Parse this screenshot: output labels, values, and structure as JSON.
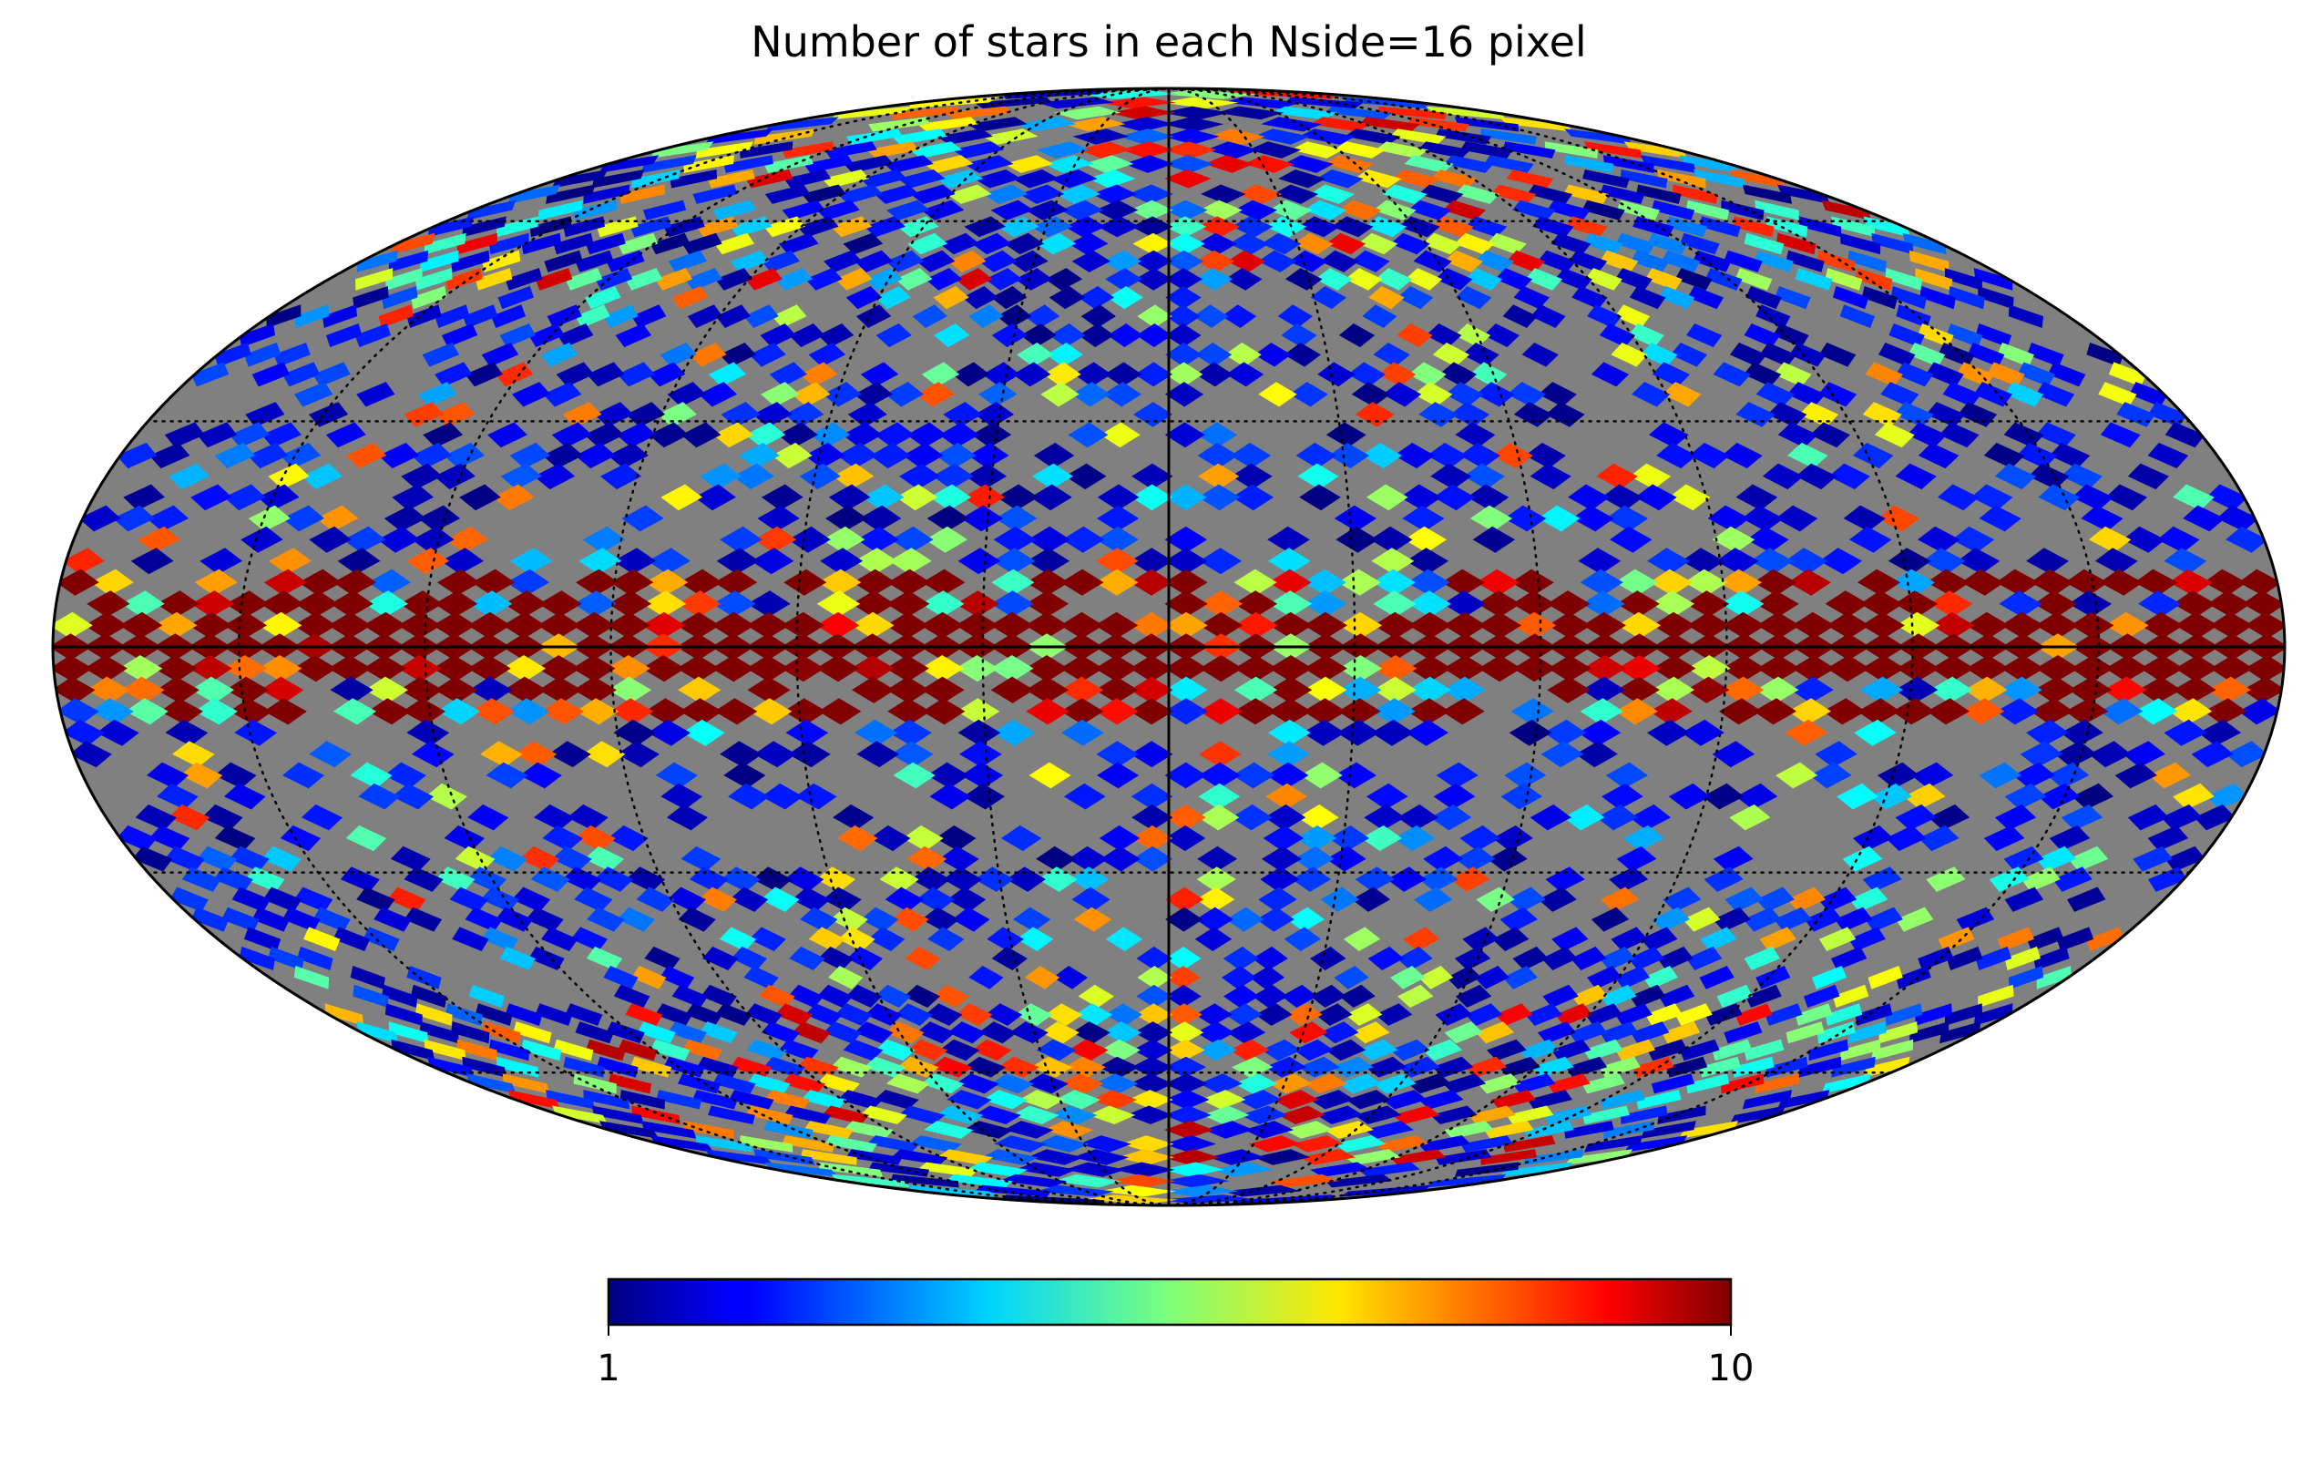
{
  "chart_data": {
    "type": "heatmap",
    "projection": "mollweide",
    "title": "Number of stars in each Nside=16 pixel",
    "nside": 16,
    "colormap": "jet",
    "color_scale": "log",
    "vmin": 1,
    "vmax": 10,
    "bad_value_color": "#808080",
    "graticule": {
      "latitudes_deg": [
        -60,
        -30,
        0,
        30,
        60
      ],
      "longitudes_deg": [
        -150,
        -120,
        -90,
        -60,
        -30,
        0,
        30,
        60,
        90,
        120,
        150
      ],
      "style": "dotted"
    },
    "colorbar": {
      "orientation": "horizontal",
      "tick_labels": [
        "1",
        "10"
      ]
    },
    "notes": "Dense band (values at or above 10) along the equator; sparse/empty (grey) regions at mid-latitudes; mixed low counts (1–5) toward the poles."
  }
}
